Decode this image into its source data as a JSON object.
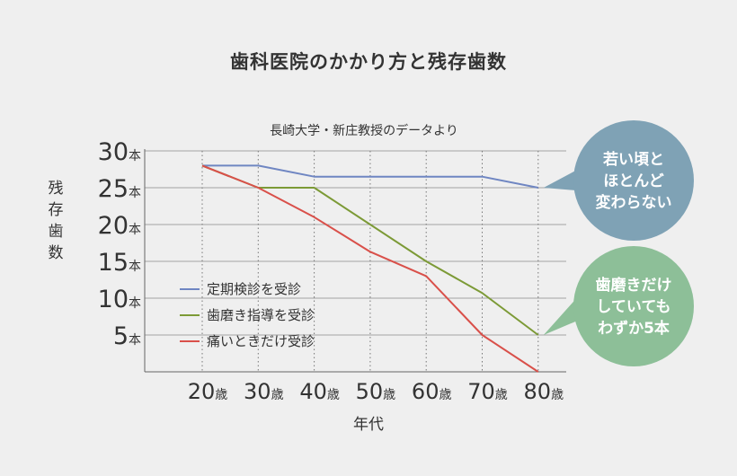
{
  "chart_data": {
    "type": "line",
    "title": "歯科医院のかかり方と残存歯数",
    "subtitle": "長崎大学・新庄教授のデータより",
    "xlabel": "年代",
    "ylabel": "残存歯数",
    "y_unit": "本",
    "x_unit": "歳",
    "categories": [
      "20",
      "30",
      "40",
      "50",
      "60",
      "70",
      "80"
    ],
    "yticks": [
      5,
      10,
      15,
      20,
      25,
      30
    ],
    "ylim": [
      0,
      30
    ],
    "grid": "vertical-dotted, horizontal-solid",
    "legend_position": "lower-left",
    "series": [
      {
        "name": "定期検診を受診",
        "color": "#6f86c2",
        "values": [
          28,
          28,
          26.5,
          26.5,
          26.5,
          26.5,
          25
        ]
      },
      {
        "name": "歯磨き指導を受診",
        "color": "#7c9a36",
        "values": [
          28,
          25,
          25,
          20,
          15,
          10.7,
          5
        ]
      },
      {
        "name": "痛いときだけ受診",
        "color": "#d9504a",
        "values": [
          28,
          25,
          21,
          16.3,
          13,
          5,
          0
        ]
      }
    ],
    "annotations": [
      {
        "lines": [
          "若い頃と",
          "ほとんど",
          "変わらない"
        ],
        "color": "#7fa2b5",
        "series": 0
      },
      {
        "lines": [
          "歯磨きだけ",
          "していても",
          "わずか5本"
        ],
        "color": "#8dbf98",
        "series": 1
      }
    ]
  }
}
